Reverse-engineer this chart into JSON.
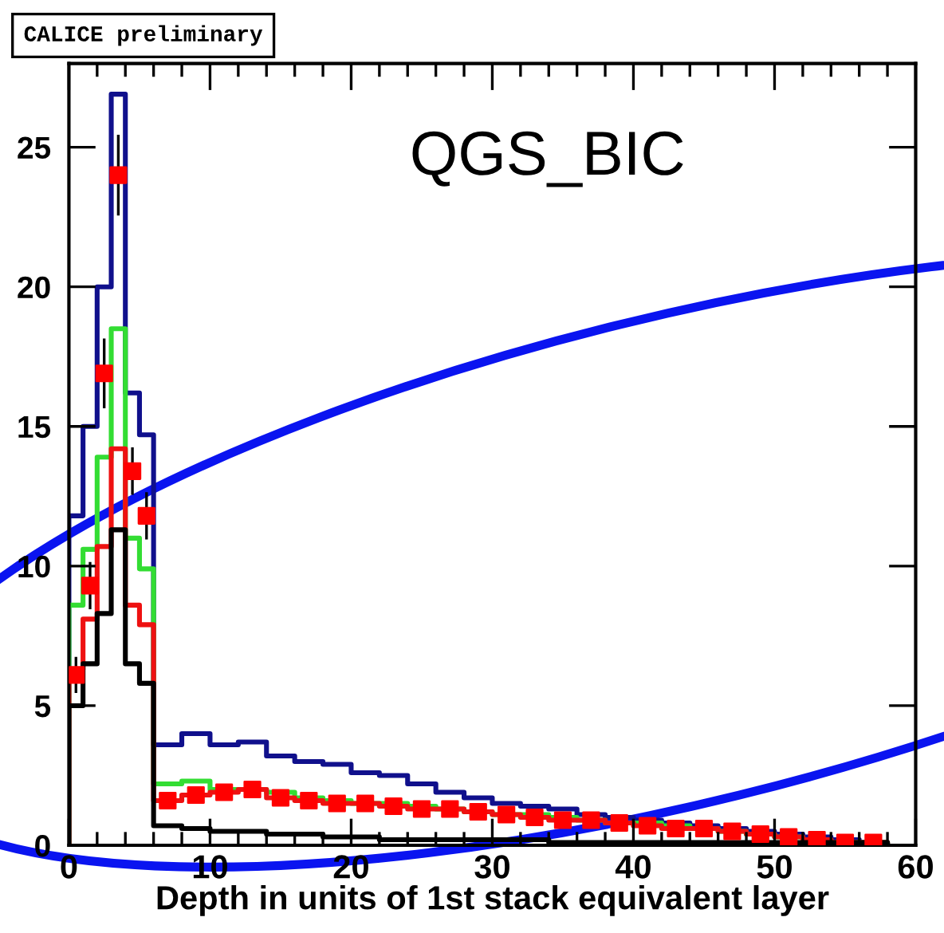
{
  "chart_data": {
    "type": "histogram",
    "xlabel": "Depth in units of 1st stack equivalent layer",
    "annotations": [
      "CALICE preliminary",
      "QGS_BIC"
    ],
    "bins": [
      0,
      1,
      2,
      3,
      4,
      5,
      6,
      8,
      10,
      12,
      14,
      16,
      18,
      20,
      22,
      24,
      26,
      28,
      30,
      32,
      34,
      36,
      38,
      40,
      42,
      44,
      46,
      48,
      50,
      52,
      54,
      56,
      58
    ],
    "series": [
      {
        "color": "#10108c",
        "values": [
          11.8,
          15.0,
          20.0,
          26.9,
          16.2,
          14.7,
          3.6,
          4.0,
          3.6,
          3.7,
          3.2,
          3.0,
          2.9,
          2.6,
          2.5,
          2.2,
          1.9,
          1.7,
          1.5,
          1.4,
          1.3,
          1.1,
          1.0,
          0.9,
          0.8,
          0.7,
          0.6,
          0.5,
          0.4,
          0.3,
          0.2,
          0.1
        ]
      },
      {
        "color": "#33dd33",
        "values": [
          8.6,
          10.6,
          13.9,
          18.5,
          11.0,
          9.9,
          2.2,
          2.3,
          2.0,
          2.0,
          1.9,
          1.7,
          1.6,
          1.5,
          1.5,
          1.4,
          1.3,
          1.2,
          1.1,
          1.1,
          1.0,
          0.9,
          0.8,
          0.8,
          0.7,
          0.6,
          0.5,
          0.4,
          0.3,
          0.2,
          0.1,
          0.1
        ]
      },
      {
        "color": "#ee1111",
        "values": [
          6.3,
          8.1,
          10.7,
          14.2,
          8.6,
          7.9,
          1.6,
          1.8,
          1.9,
          2.0,
          1.7,
          1.6,
          1.5,
          1.5,
          1.4,
          1.3,
          1.3,
          1.2,
          1.1,
          1.0,
          0.9,
          0.9,
          0.8,
          0.7,
          0.6,
          0.6,
          0.5,
          0.4,
          0.3,
          0.2,
          0.1,
          0.1
        ]
      },
      {
        "color": "#000000",
        "values": [
          5.0,
          6.5,
          8.3,
          11.3,
          6.5,
          5.8,
          0.7,
          0.6,
          0.5,
          0.5,
          0.4,
          0.4,
          0.3,
          0.3,
          0.2,
          0.2,
          0.2,
          0.2,
          0.2,
          0.2,
          0.1,
          0.1,
          0.1,
          0.1,
          0.1,
          0.1,
          0.1,
          0.1,
          0.1,
          0.1,
          0.1,
          0.1
        ]
      },
      {
        "type": "scatter",
        "marker": "square",
        "color": "#ff0000",
        "x": [
          0.5,
          1.5,
          2.5,
          3.5,
          4.5,
          5.5,
          7,
          9,
          11,
          13,
          15,
          17,
          19,
          21,
          23,
          25,
          27,
          29,
          31,
          33,
          35,
          37,
          39,
          41,
          43,
          45,
          47,
          49,
          51,
          53,
          55,
          57
        ],
        "values": [
          6.1,
          9.3,
          16.9,
          24.0,
          13.4,
          11.8,
          1.6,
          1.8,
          1.9,
          2.0,
          1.7,
          1.6,
          1.5,
          1.5,
          1.4,
          1.3,
          1.3,
          1.2,
          1.1,
          1.0,
          0.9,
          0.9,
          0.8,
          0.7,
          0.6,
          0.6,
          0.5,
          0.4,
          0.3,
          0.2,
          0.1,
          0.1
        ],
        "errors": [
          0.6,
          0.8,
          1.2,
          1.4,
          0.8,
          0.8,
          null,
          null,
          null,
          null,
          null,
          null,
          null,
          null,
          null,
          null,
          null,
          null,
          null,
          null,
          null,
          null,
          null,
          null,
          null,
          null,
          null,
          null,
          null,
          null,
          null,
          null
        ]
      }
    ],
    "xlim": [
      0,
      60
    ],
    "xticks": [
      0,
      10,
      20,
      30,
      40,
      50,
      60
    ],
    "ylim": [
      0,
      28
    ],
    "yticks": [
      0,
      5,
      10,
      15,
      20,
      25
    ],
    "grid": false,
    "legend": false
  }
}
